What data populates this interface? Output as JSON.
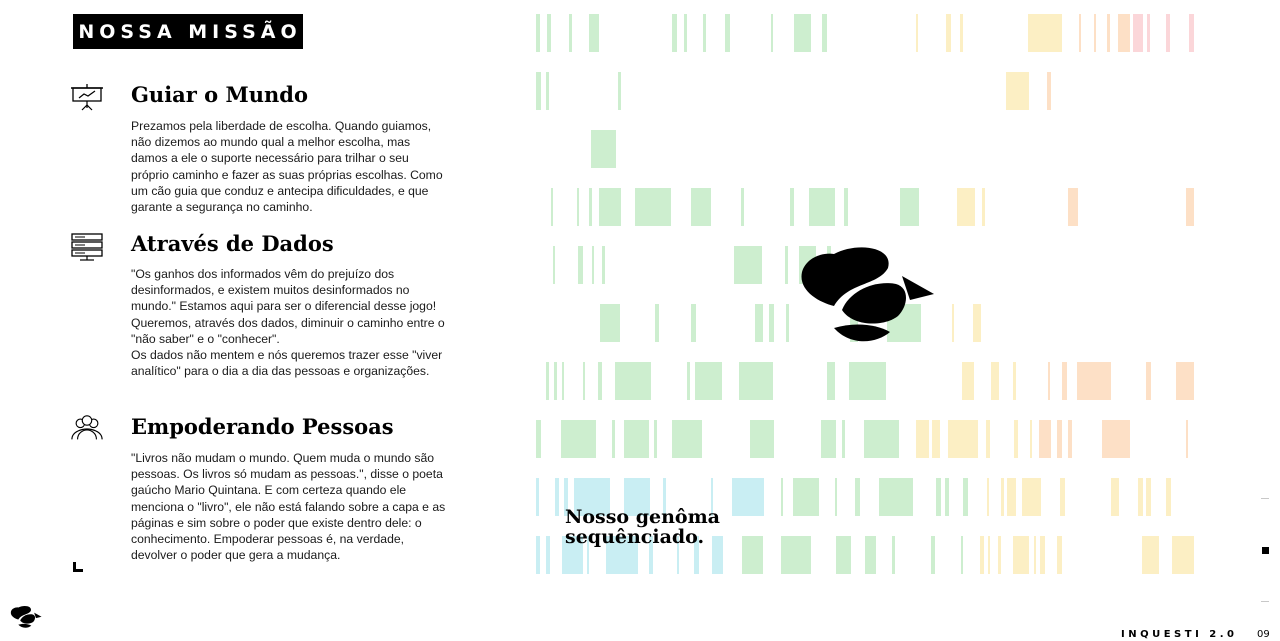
{
  "header": {
    "title": "NOSSA MISSÃO"
  },
  "sections": [
    {
      "icon": "presentation-board-icon",
      "heading": "Guiar o Mundo",
      "paragraphs": [
        "Prezamos pela liberdade de escolha. Quando guiamos, não dizemos ao mundo qual a melhor escolha, mas damos a ele o suporte necessário para trilhar o seu próprio caminho e fazer as suas próprias escolhas. Como um cão guia que conduz e antecipa dificuldades, e que garante a segurança no caminho."
      ]
    },
    {
      "icon": "server-icon",
      "heading": "Através de Dados",
      "paragraphs": [
        "\"Os ganhos dos informados vêm do prejuízo dos desinformados, e existem muitos desinformados no mundo.\" Estamos aqui para ser o diferencial desse jogo! Queremos, através dos dados, diminuir o caminho entre o \"não saber\" e o \"conhecer\".",
        "Os dados não mentem e nós queremos trazer esse \"viver analítico\" para o dia a dia das pessoas e organizações."
      ]
    },
    {
      "icon": "people-group-icon",
      "heading": "Empoderando Pessoas",
      "paragraphs": [
        "\"Livros não mudam o mundo. Quem muda o mundo são pessoas. Os livros só mudam as pessoas.\", disse o poeta gaúcho Mario Quintana. E com certeza quando ele menciona o \"livro\", ele não está falando sobre a capa e as páginas e sim sobre o poder que existe dentro dele: o conhecimento. Empoderar pessoas é, na verdade, devolver o poder que gera a mudança."
      ]
    }
  ],
  "genome": {
    "line1": "Nosso genôma",
    "line2": "sequênciado."
  },
  "footer": {
    "brand": "INQUESTI 2.0",
    "page": "09"
  },
  "colors": {
    "green": "#cdeecf",
    "teal": "#c9eef3",
    "yellow": "#fcefc4",
    "peach": "#fde0c6",
    "pink": "#fbd6d9"
  },
  "icons": {
    "center_logo": "bird-logo-icon",
    "small_logo": "bird-logo-icon"
  }
}
